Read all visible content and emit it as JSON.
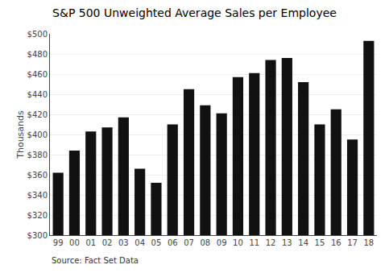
{
  "chart_data": {
    "type": "bar",
    "title": "S&P 500 Unweighted Average Sales per Employee",
    "y_label": "Thousands",
    "annotations": [
      "Source: Fact Set Data"
    ],
    "categories": [
      "99",
      "00",
      "01",
      "02",
      "03",
      "04",
      "05",
      "06",
      "07",
      "08",
      "09",
      "10",
      "11",
      "12",
      "13",
      "14",
      "15",
      "16",
      "17",
      "18"
    ],
    "values": [
      362,
      384,
      403,
      407,
      417,
      366,
      352,
      410,
      445,
      429,
      421,
      457,
      461,
      474,
      476,
      452,
      410,
      425,
      395,
      493
    ],
    "color": "#111111",
    "ylim": [
      300,
      500
    ],
    "yticks": [
      {
        "value": 300,
        "label": "$300"
      },
      {
        "value": 320,
        "label": "$320"
      },
      {
        "value": 340,
        "label": "$340"
      },
      {
        "value": 360,
        "label": "$360"
      },
      {
        "value": 380,
        "label": "$380"
      },
      {
        "value": 400,
        "label": "$400"
      },
      {
        "value": 420,
        "label": "$420"
      },
      {
        "value": 440,
        "label": "$440"
      },
      {
        "value": 460,
        "label": "$460"
      },
      {
        "value": 480,
        "label": "$480"
      },
      {
        "value": 500,
        "label": "$500"
      }
    ],
    "grid": true
  }
}
